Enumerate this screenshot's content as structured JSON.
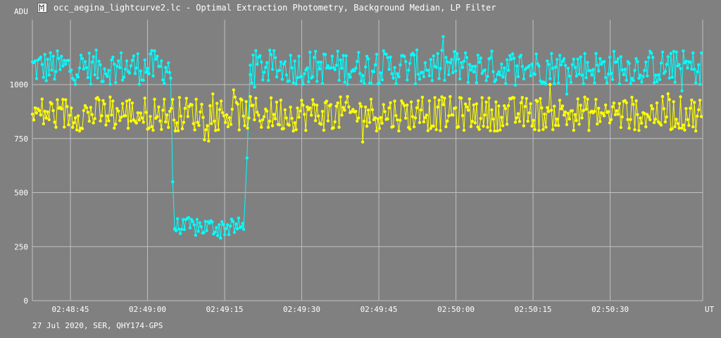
{
  "window": {
    "title": "occ_aegina_lightcurve2.lc - Optimal Extraction Photometry, Background Median, LP Filter",
    "icon": "lightcurve-app-icon"
  },
  "footer": "27 Jul 2020, SER, QHY174-GPS",
  "colors": {
    "background": "#808080",
    "grid": "#c0c0c0",
    "target": "#00ffff",
    "comparison": "#ffff00"
  },
  "chart_data": {
    "type": "line",
    "ylabel": "ADU",
    "xlabel": "UT",
    "ylim": [
      0,
      1300
    ],
    "xlim": [
      "02:48:37.6",
      "02:50:48.0"
    ],
    "yticks": [
      0,
      250,
      500,
      750,
      1000
    ],
    "xticks": [
      "02:48:45",
      "02:49:00",
      "02:49:15",
      "02:49:30",
      "02:49:45",
      "02:50:00",
      "02:50:15",
      "02:50:30"
    ],
    "grid": true,
    "series": [
      {
        "color": "#00ffff",
        "segments": [
          {
            "x_start": "02:48:37.6",
            "x_end": "02:49:04.5",
            "approx_level": 1080
          },
          {
            "x_start": "02:49:04.5",
            "x_end": "02:49:05.3",
            "transition": [
              1030,
              550,
              330
            ]
          },
          {
            "x_start": "02:49:05.3",
            "x_end": "02:49:18.7",
            "approx_level": 340
          },
          {
            "x_start": "02:49:18.7",
            "x_end": "02:49:20.0",
            "transition": [
              330,
              660,
              1090
            ]
          },
          {
            "x_start": "02:49:20.0",
            "x_end": "02:50:48.0",
            "approx_level": 1080
          }
        ]
      },
      {
        "color": "#ffff00",
        "segments": [
          {
            "x_start": "02:48:37.6",
            "x_end": "02:50:48.0",
            "approx_level": 865
          }
        ]
      }
    ]
  }
}
